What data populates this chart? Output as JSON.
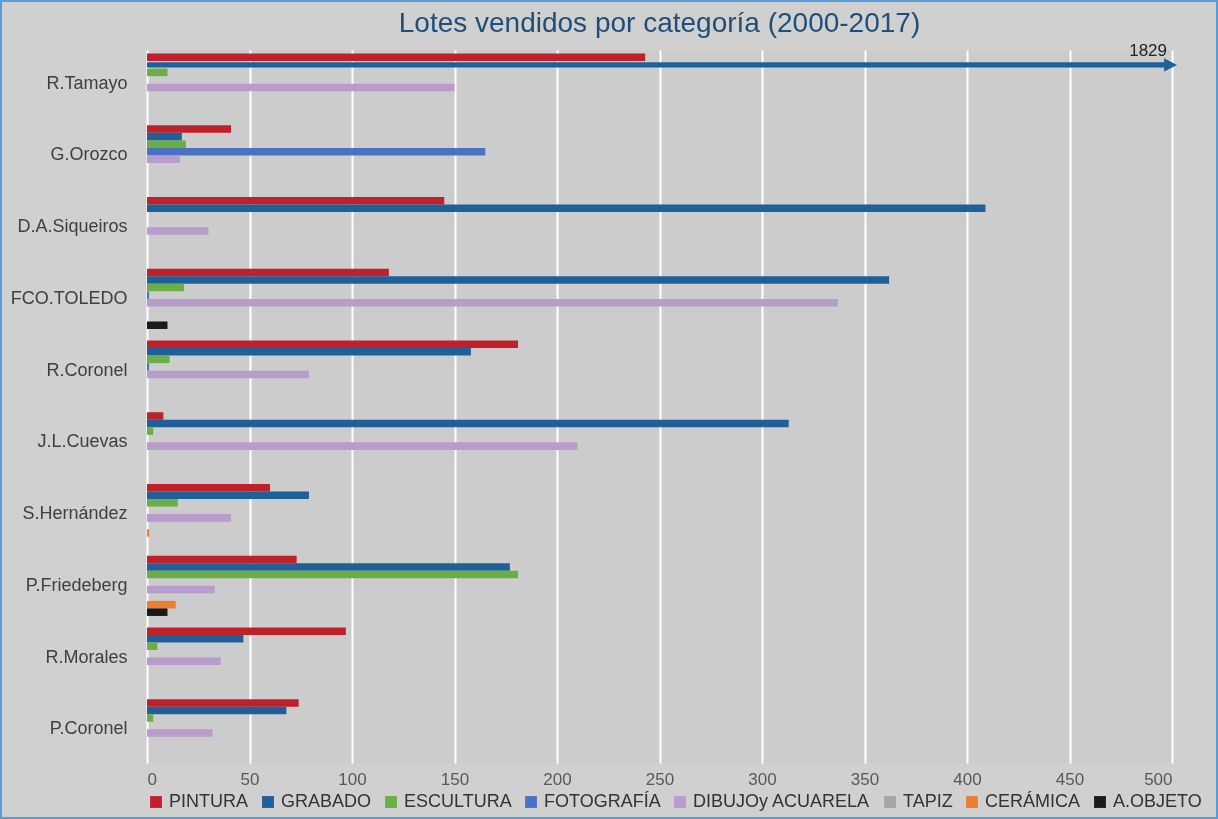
{
  "chart_data": {
    "type": "bar",
    "orientation": "horizontal",
    "title": "Lotes vendidos por categoría (2000-2017)",
    "categories": [
      "R.Tamayo",
      "G.Orozco",
      "D.A.Siqueiros",
      "FCO.TOLEDO",
      "R.Coronel",
      "J.L.Cuevas",
      "S.Hernández",
      "P.Friedeberg",
      "R.Morales",
      "P.Coronel"
    ],
    "series": [
      {
        "name": "PINTURA",
        "color": "#c0202a",
        "values": [
          243,
          41,
          145,
          118,
          181,
          8,
          60,
          73,
          97,
          74
        ]
      },
      {
        "name": "GRABADO",
        "color": "#1f5f9a",
        "values": [
          null,
          17,
          409,
          362,
          158,
          313,
          79,
          177,
          47,
          68
        ]
      },
      {
        "name": "ESCULTURA",
        "color": "#6aaf45",
        "values": [
          10,
          19,
          null,
          18,
          11,
          3,
          15,
          181,
          5,
          3
        ]
      },
      {
        "name": "FOTOGRAFÍA",
        "color": "#4a72c4",
        "values": [
          null,
          165,
          null,
          1,
          1,
          null,
          null,
          null,
          null,
          null
        ]
      },
      {
        "name": "DIBUJOy ACUARELA",
        "color": "#b89ccc",
        "values": [
          150,
          16,
          30,
          337,
          79,
          210,
          41,
          33,
          36,
          32
        ]
      },
      {
        "name": "TAPIZ",
        "color": "#a6a6a6",
        "values": [
          null,
          null,
          null,
          null,
          null,
          null,
          null,
          null,
          null,
          null
        ]
      },
      {
        "name": "CERÁMICA",
        "color": "#ed7d31",
        "values": [
          null,
          null,
          null,
          null,
          null,
          null,
          1,
          14,
          null,
          null
        ]
      },
      {
        "name": "A.OBJETO",
        "color": "#1a1a1a",
        "values": [
          null,
          null,
          null,
          10,
          null,
          null,
          null,
          10,
          null,
          null
        ]
      }
    ],
    "annotations": [
      "1829"
    ],
    "xlim": [
      0,
      500
    ],
    "xticks": [
      0,
      50,
      100,
      150,
      200,
      250,
      300,
      350,
      400,
      450,
      500
    ],
    "grid": "x",
    "legend": "bottom"
  }
}
